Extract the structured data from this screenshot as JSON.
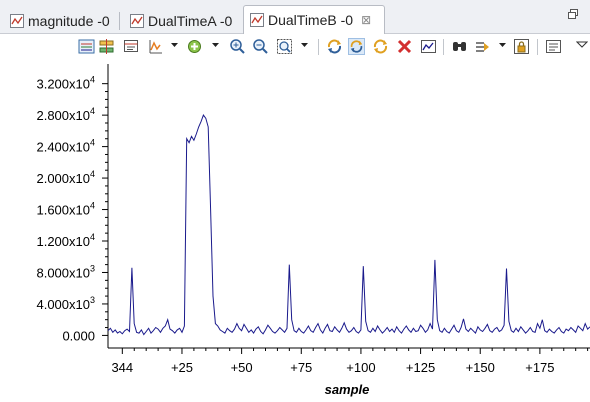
{
  "tabs": [
    {
      "label": "magnitude -0",
      "active": false,
      "icon": "chart-icon"
    },
    {
      "label": "DualTimeA -0",
      "active": false,
      "icon": "chart-icon"
    },
    {
      "label": "DualTimeB -0",
      "active": true,
      "icon": "chart-icon",
      "close": "⊠"
    }
  ],
  "view_menu_icon": "restore-icon",
  "toolbar": {
    "buttons": [
      "trace-visibility-icon",
      "trace-toggle-icon",
      "data-view-icon",
      "signal-drop-icon",
      "add-cursor-icon",
      "zoom-in-icon",
      "zoom-out-icon",
      "zoom-fit-icon",
      "sync-icon",
      "sync-pressed-icon",
      "sync-alt-icon",
      "remove-icon",
      "snapshot-icon",
      "find-icon",
      "step-icon",
      "lock-icon",
      "properties-icon",
      "view-menu-icon"
    ]
  },
  "colors": {
    "trace": "#1a1a8c",
    "axis": "#000000",
    "tab_bar": "#eef0f4"
  },
  "chart_data": {
    "type": "line",
    "xlabel": "sample",
    "ylabel": "",
    "xlim": [
      -6,
      196
    ],
    "ylim": [
      -1600,
      34500
    ],
    "yticks": [
      {
        "value": 0,
        "label": "0.000"
      },
      {
        "value": 4000,
        "label": "4.000x10",
        "exp": "3"
      },
      {
        "value": 8000,
        "label": "8.000x10",
        "exp": "3"
      },
      {
        "value": 12000,
        "label": "1.200x10",
        "exp": "4"
      },
      {
        "value": 16000,
        "label": "1.600x10",
        "exp": "4"
      },
      {
        "value": 20000,
        "label": "2.000x10",
        "exp": "4"
      },
      {
        "value": 24000,
        "label": "2.400x10",
        "exp": "4"
      },
      {
        "value": 28000,
        "label": "2.800x10",
        "exp": "4"
      },
      {
        "value": 32000,
        "label": "3.200x10",
        "exp": "4"
      }
    ],
    "xticks": [
      {
        "value": 0,
        "label": "344"
      },
      {
        "value": 25,
        "label": "+25"
      },
      {
        "value": 50,
        "label": "+50"
      },
      {
        "value": 75,
        "label": "+75"
      },
      {
        "value": 100,
        "label": "+100"
      },
      {
        "value": 125,
        "label": "+125"
      },
      {
        "value": 150,
        "label": "+150"
      },
      {
        "value": 175,
        "label": "+175"
      }
    ],
    "series": [
      {
        "points": [
          [
            -6,
            600
          ],
          [
            -5,
            900
          ],
          [
            -4,
            400
          ],
          [
            -3,
            700
          ],
          [
            -2,
            300
          ],
          [
            -1,
            500
          ],
          [
            0,
            200
          ],
          [
            1,
            600
          ],
          [
            2,
            800
          ],
          [
            3,
            500
          ],
          [
            4,
            8600
          ],
          [
            5,
            1500
          ],
          [
            6,
            400
          ],
          [
            7,
            300
          ],
          [
            8,
            700
          ],
          [
            9,
            100
          ],
          [
            10,
            500
          ],
          [
            11,
            900
          ],
          [
            12,
            300
          ],
          [
            13,
            600
          ],
          [
            14,
            1000
          ],
          [
            15,
            800
          ],
          [
            16,
            400
          ],
          [
            17,
            900
          ],
          [
            18,
            1200
          ],
          [
            19,
            2000
          ],
          [
            20,
            800
          ],
          [
            21,
            600
          ],
          [
            22,
            300
          ],
          [
            23,
            700
          ],
          [
            24,
            900
          ],
          [
            25,
            400
          ],
          [
            26,
            1200
          ],
          [
            27,
            25000
          ],
          [
            28,
            24500
          ],
          [
            29,
            25300
          ],
          [
            30,
            24800
          ],
          [
            31,
            25600
          ],
          [
            32,
            26500
          ],
          [
            33,
            27200
          ],
          [
            34,
            28000
          ],
          [
            35,
            27600
          ],
          [
            36,
            26500
          ],
          [
            37,
            16000
          ],
          [
            38,
            5000
          ],
          [
            39,
            1500
          ],
          [
            40,
            1200
          ],
          [
            41,
            700
          ],
          [
            42,
            500
          ],
          [
            43,
            300
          ],
          [
            44,
            900
          ],
          [
            45,
            600
          ],
          [
            46,
            400
          ],
          [
            47,
            800
          ],
          [
            48,
            1500
          ],
          [
            49,
            900
          ],
          [
            50,
            600
          ],
          [
            51,
            1400
          ],
          [
            52,
            900
          ],
          [
            53,
            400
          ],
          [
            54,
            700
          ],
          [
            55,
            300
          ],
          [
            56,
            800
          ],
          [
            57,
            1100
          ],
          [
            58,
            500
          ],
          [
            59,
            200
          ],
          [
            60,
            700
          ],
          [
            61,
            1300
          ],
          [
            62,
            900
          ],
          [
            63,
            500
          ],
          [
            64,
            300
          ],
          [
            65,
            600
          ],
          [
            66,
            1000
          ],
          [
            67,
            700
          ],
          [
            68,
            400
          ],
          [
            69,
            900
          ],
          [
            70,
            9000
          ],
          [
            71,
            2000
          ],
          [
            72,
            600
          ],
          [
            73,
            400
          ],
          [
            74,
            900
          ],
          [
            75,
            500
          ],
          [
            76,
            300
          ],
          [
            77,
            700
          ],
          [
            78,
            1200
          ],
          [
            79,
            600
          ],
          [
            80,
            400
          ],
          [
            81,
            1000
          ],
          [
            82,
            1500
          ],
          [
            83,
            700
          ],
          [
            84,
            300
          ],
          [
            85,
            900
          ],
          [
            86,
            1400
          ],
          [
            87,
            600
          ],
          [
            88,
            500
          ],
          [
            89,
            1100
          ],
          [
            90,
            700
          ],
          [
            91,
            400
          ],
          [
            92,
            900
          ],
          [
            93,
            1600
          ],
          [
            94,
            800
          ],
          [
            95,
            400
          ],
          [
            96,
            600
          ],
          [
            97,
            1000
          ],
          [
            98,
            500
          ],
          [
            99,
            300
          ],
          [
            100,
            700
          ],
          [
            101,
            8800
          ],
          [
            102,
            1800
          ],
          [
            103,
            600
          ],
          [
            104,
            400
          ],
          [
            105,
            900
          ],
          [
            106,
            500
          ],
          [
            107,
            1200
          ],
          [
            108,
            700
          ],
          [
            109,
            300
          ],
          [
            110,
            600
          ],
          [
            111,
            1000
          ],
          [
            112,
            500
          ],
          [
            113,
            800
          ],
          [
            114,
            400
          ],
          [
            115,
            1100
          ],
          [
            116,
            600
          ],
          [
            117,
            300
          ],
          [
            118,
            800
          ],
          [
            119,
            1200
          ],
          [
            120,
            700
          ],
          [
            121,
            400
          ],
          [
            122,
            900
          ],
          [
            123,
            500
          ],
          [
            124,
            600
          ],
          [
            125,
            1300
          ],
          [
            126,
            900
          ],
          [
            127,
            400
          ],
          [
            128,
            700
          ],
          [
            129,
            1500
          ],
          [
            130,
            800
          ],
          [
            131,
            9600
          ],
          [
            132,
            2000
          ],
          [
            133,
            600
          ],
          [
            134,
            400
          ],
          [
            135,
            900
          ],
          [
            136,
            500
          ],
          [
            137,
            300
          ],
          [
            138,
            800
          ],
          [
            139,
            1300
          ],
          [
            140,
            600
          ],
          [
            141,
            400
          ],
          [
            142,
            1000
          ],
          [
            143,
            2100
          ],
          [
            144,
            800
          ],
          [
            145,
            500
          ],
          [
            146,
            900
          ],
          [
            147,
            600
          ],
          [
            148,
            300
          ],
          [
            149,
            1100
          ],
          [
            150,
            700
          ],
          [
            151,
            500
          ],
          [
            152,
            900
          ],
          [
            153,
            1400
          ],
          [
            154,
            600
          ],
          [
            155,
            400
          ],
          [
            156,
            800
          ],
          [
            157,
            1000
          ],
          [
            158,
            500
          ],
          [
            159,
            700
          ],
          [
            160,
            1300
          ],
          [
            161,
            8500
          ],
          [
            162,
            1800
          ],
          [
            163,
            600
          ],
          [
            164,
            400
          ],
          [
            165,
            900
          ],
          [
            166,
            500
          ],
          [
            167,
            1100
          ],
          [
            168,
            700
          ],
          [
            169,
            300
          ],
          [
            170,
            600
          ],
          [
            171,
            1000
          ],
          [
            172,
            500
          ],
          [
            173,
            400
          ],
          [
            174,
            1500
          ],
          [
            175,
            900
          ],
          [
            176,
            2000
          ],
          [
            177,
            600
          ],
          [
            178,
            400
          ],
          [
            179,
            800
          ],
          [
            180,
            500
          ],
          [
            181,
            300
          ],
          [
            182,
            700
          ],
          [
            183,
            1000
          ],
          [
            184,
            500
          ],
          [
            185,
            300
          ],
          [
            186,
            800
          ],
          [
            187,
            600
          ],
          [
            188,
            1000
          ],
          [
            189,
            700
          ],
          [
            190,
            400
          ],
          [
            191,
            1200
          ],
          [
            192,
            900
          ],
          [
            193,
            600
          ],
          [
            194,
            1500
          ],
          [
            195,
            800
          ],
          [
            196,
            1100
          ]
        ]
      }
    ]
  }
}
